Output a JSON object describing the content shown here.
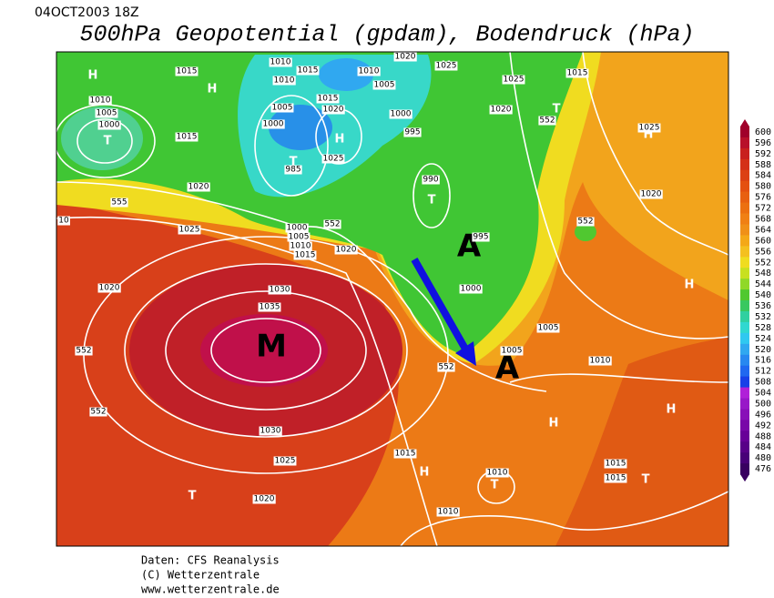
{
  "header": {
    "date": "04OCT2003 18Z",
    "title": "500hPa Geopotential (gpdam), Bodendruck (hPa)"
  },
  "map_labels": {
    "centers": [
      "H",
      "H",
      "T",
      "H",
      "T",
      "T",
      "H",
      "T",
      "H",
      "H",
      "H",
      "H",
      "H",
      "T",
      "T",
      "T"
    ],
    "big_centers": [
      "A",
      "M",
      "A"
    ],
    "isobars": [
      "1015",
      "1010",
      "1015",
      "1020",
      "1025",
      "1010",
      "1010",
      "1005",
      "1025",
      "1015",
      "1010",
      "1005",
      "1000",
      "1015",
      "1005",
      "1015",
      "1020",
      "1000",
      "1000",
      "995",
      "1020",
      "1025",
      "985",
      "1025",
      "990",
      "1020",
      "1020",
      "1000",
      "1005",
      "1010",
      "1015",
      "1020",
      "1025",
      "995",
      "1030",
      "1035",
      "1020",
      "1000",
      "1005",
      "1005",
      "1010",
      "1030",
      "1025",
      "1020",
      "1015",
      "1010",
      "1015",
      "1015",
      "1010",
      "10"
    ],
    "contours": [
      "552",
      "555",
      "552",
      "552",
      "552",
      "552",
      "552"
    ]
  },
  "colorbar": {
    "levels": [
      600,
      596,
      592,
      588,
      584,
      580,
      576,
      572,
      568,
      564,
      560,
      556,
      552,
      548,
      544,
      540,
      536,
      532,
      528,
      524,
      520,
      516,
      512,
      508,
      504,
      500,
      496,
      492,
      488,
      484,
      480,
      476
    ],
    "colors": [
      "#a0002a",
      "#b8102a",
      "#c8201e",
      "#d43018",
      "#dc4014",
      "#e45010",
      "#e86010",
      "#ec7010",
      "#f08014",
      "#f09018",
      "#f4a818",
      "#f4c020",
      "#f0dc20",
      "#c8e020",
      "#90d828",
      "#50c830",
      "#38c860",
      "#30d0a0",
      "#30d8d0",
      "#30c8f0",
      "#30a8f0",
      "#2888f0",
      "#2068f0",
      "#1840e8",
      "#b020d8",
      "#9818c8",
      "#8810b8",
      "#7808a8",
      "#680098",
      "#580088",
      "#480078",
      "#380060"
    ]
  },
  "footer": {
    "lines": [
      "Daten: CFS Reanalysis",
      "(C) Wetterzentrale",
      "www.wetterzentrale.de"
    ]
  }
}
